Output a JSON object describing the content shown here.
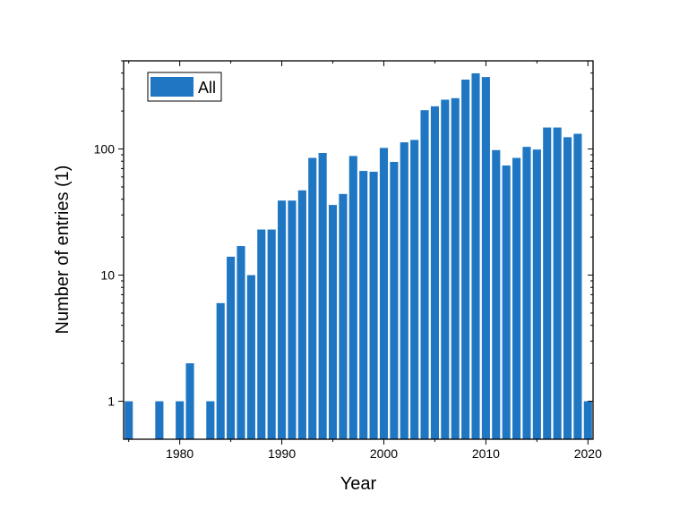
{
  "chart_data": {
    "type": "bar",
    "xlabel": "Year",
    "ylabel": "Number of entries (1)",
    "y_scale": "log",
    "ylim": [
      0.5,
      500
    ],
    "xlim": [
      1974.5,
      2020.5
    ],
    "x_ticks": [
      1980,
      1990,
      2000,
      2010,
      2020
    ],
    "y_ticks": [
      1,
      10,
      100
    ],
    "y_tick_labels": [
      "1",
      "10",
      "100"
    ],
    "grid": false,
    "legend_position": "top-left",
    "bar_color": "#1f77c4",
    "series": [
      {
        "name": "All",
        "x": [
          1975,
          1978,
          1980,
          1981,
          1983,
          1984,
          1985,
          1986,
          1987,
          1988,
          1989,
          1990,
          1991,
          1992,
          1993,
          1994,
          1995,
          1996,
          1997,
          1998,
          1999,
          2000,
          2001,
          2002,
          2003,
          2004,
          2005,
          2006,
          2007,
          2008,
          2009,
          2010,
          2011,
          2012,
          2013,
          2014,
          2015,
          2016,
          2017,
          2018,
          2019,
          2020
        ],
        "values": [
          1,
          1,
          1,
          2,
          1,
          6,
          14,
          17,
          10,
          23,
          23,
          39,
          39,
          47,
          85,
          93,
          36,
          44,
          88,
          67,
          66,
          102,
          79,
          113,
          118,
          203,
          218,
          246,
          253,
          355,
          398,
          372,
          98,
          74,
          85,
          104,
          99,
          148,
          148,
          124,
          132,
          1
        ]
      }
    ]
  }
}
